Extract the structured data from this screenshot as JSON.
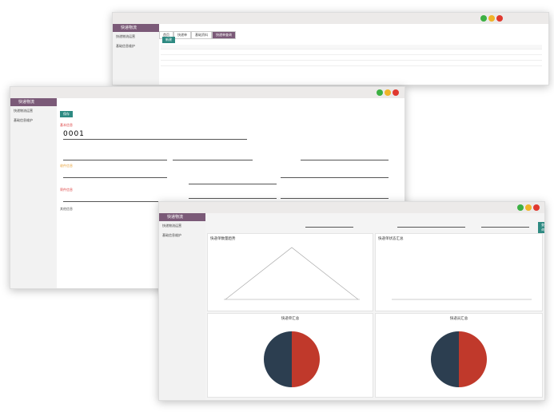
{
  "windows": [
    {
      "sidebar_title": "快递物流",
      "menu": [
        "快递物流运营",
        "基础信息维护"
      ],
      "tabs": [
        "首页",
        "快递单",
        "基础资料",
        "快递单查询"
      ],
      "button": "新建"
    },
    {
      "sidebar_title": "快递物流",
      "menu": [
        "快递物流运营",
        "基础信息维护"
      ],
      "form_code": "0001",
      "button": "保存",
      "sections": [
        "基本信息",
        "收件信息",
        "寄件信息",
        "其他信息"
      ]
    },
    {
      "sidebar_title": "快递物流",
      "menu": [
        "快递物流运营",
        "基础信息维护"
      ],
      "button": "查询",
      "charts": [
        "快递单数量趋势",
        "快递单状态汇总",
        "快递单汇总",
        "快递员汇总"
      ]
    }
  ]
}
